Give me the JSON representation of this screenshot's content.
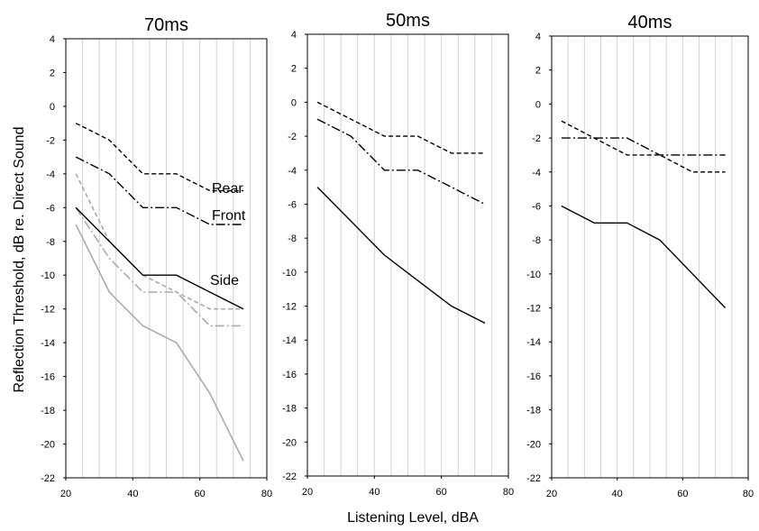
{
  "chart_data": {
    "type": "line",
    "ylabel": "Reflection Threshold, dB re. Direct Sound",
    "xlabel": "Listening Level, dBA",
    "xlim": [
      20,
      80
    ],
    "ylim": [
      -22,
      4
    ],
    "xticks": [
      20,
      40,
      60,
      80
    ],
    "yticks": [
      4,
      2,
      0,
      -2,
      -4,
      -6,
      -8,
      -10,
      -12,
      -14,
      -16,
      -18,
      -20,
      -22
    ],
    "grid": "vertical",
    "panels": [
      {
        "title": "70ms",
        "series": [
          {
            "name": "Rear",
            "style": "dashed",
            "color": "#000000",
            "x": [
              23,
              33,
              43,
              53,
              63,
              73
            ],
            "y": [
              -1,
              -2,
              -4,
              -4,
              -5,
              -5
            ]
          },
          {
            "name": "Front",
            "style": "dashdot",
            "color": "#000000",
            "x": [
              23,
              33,
              43,
              53,
              63,
              73
            ],
            "y": [
              -3,
              -4,
              -6,
              -6,
              -7,
              -7
            ]
          },
          {
            "name": "Side",
            "style": "solid",
            "color": "#000000",
            "x": [
              23,
              33,
              43,
              53,
              63,
              73
            ],
            "y": [
              -6,
              -8,
              -10,
              -10,
              -11,
              -12
            ]
          },
          {
            "style": "dashed",
            "color": "#aaaaaa",
            "x": [
              23,
              33,
              43,
              53,
              63,
              73
            ],
            "y": [
              -4,
              -8,
              -10,
              -11,
              -12,
              -12
            ]
          },
          {
            "style": "dashdot",
            "color": "#aaaaaa",
            "x": [
              23,
              33,
              43,
              53,
              63,
              73
            ],
            "y": [
              -6,
              -9,
              -11,
              -11,
              -13,
              -13
            ]
          },
          {
            "style": "solid",
            "color": "#aaaaaa",
            "x": [
              23,
              33,
              43,
              53,
              63,
              73
            ],
            "y": [
              -7,
              -11,
              -13,
              -14,
              -17,
              -21
            ]
          }
        ]
      },
      {
        "title": "50ms",
        "series": [
          {
            "style": "dashed",
            "color": "#000000",
            "x": [
              23,
              33,
              43,
              53,
              63,
              73
            ],
            "y": [
              0,
              -1,
              -2,
              -2,
              -3,
              -3
            ]
          },
          {
            "style": "dashdot",
            "color": "#000000",
            "x": [
              23,
              33,
              43,
              53,
              63,
              73
            ],
            "y": [
              -1,
              -2,
              -4,
              -4,
              -5,
              -6
            ]
          },
          {
            "style": "solid",
            "color": "#000000",
            "x": [
              23,
              33,
              43,
              53,
              63,
              73
            ],
            "y": [
              -5,
              -7,
              -9,
              -10.5,
              -12,
              -13
            ]
          }
        ]
      },
      {
        "title": "40ms",
        "series": [
          {
            "style": "dashed",
            "color": "#000000",
            "x": [
              23,
              33,
              43,
              53,
              63,
              73
            ],
            "y": [
              -1,
              -2,
              -3,
              -3,
              -4,
              -4
            ]
          },
          {
            "style": "dashdot",
            "color": "#000000",
            "x": [
              23,
              33,
              43,
              53,
              63,
              73
            ],
            "y": [
              -2,
              -2,
              -2,
              -3,
              -3,
              -3
            ]
          },
          {
            "style": "solid",
            "color": "#000000",
            "x": [
              23,
              33,
              43,
              53,
              63,
              73
            ],
            "y": [
              -6,
              -7,
              -7,
              -8,
              -10,
              -12
            ]
          }
        ]
      }
    ]
  }
}
